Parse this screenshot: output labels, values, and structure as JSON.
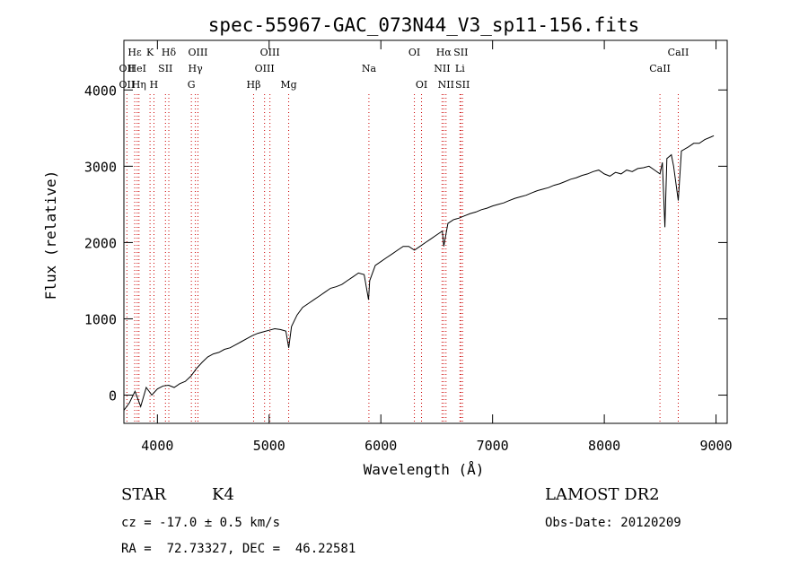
{
  "chart_data": {
    "type": "line",
    "title": "spec-55967-GAC_073N44_V3_sp11-156.fits",
    "xlabel": "Wavelength (Å)",
    "ylabel": "Flux (relative)",
    "xlim": [
      3700,
      9100
    ],
    "ylim": [
      -370,
      4650
    ],
    "xticks": [
      4000,
      5000,
      6000,
      7000,
      8000,
      9000
    ],
    "yticks": [
      0,
      1000,
      2000,
      3000,
      4000
    ],
    "grid": false,
    "series": [
      {
        "points": [
          [
            3700,
            -200
          ],
          [
            3750,
            -100
          ],
          [
            3800,
            50
          ],
          [
            3850,
            -150
          ],
          [
            3900,
            100
          ],
          [
            3950,
            0
          ],
          [
            4000,
            80
          ],
          [
            4050,
            120
          ],
          [
            4100,
            130
          ],
          [
            4150,
            100
          ],
          [
            4200,
            150
          ],
          [
            4250,
            180
          ],
          [
            4300,
            250
          ],
          [
            4350,
            350
          ],
          [
            4400,
            430
          ],
          [
            4450,
            500
          ],
          [
            4500,
            540
          ],
          [
            4550,
            560
          ],
          [
            4600,
            600
          ],
          [
            4650,
            620
          ],
          [
            4700,
            660
          ],
          [
            4750,
            700
          ],
          [
            4800,
            740
          ],
          [
            4850,
            780
          ],
          [
            4900,
            810
          ],
          [
            4950,
            830
          ],
          [
            5000,
            850
          ],
          [
            5050,
            870
          ],
          [
            5100,
            860
          ],
          [
            5150,
            840
          ],
          [
            5175,
            620
          ],
          [
            5200,
            900
          ],
          [
            5250,
            1050
          ],
          [
            5300,
            1150
          ],
          [
            5350,
            1200
          ],
          [
            5400,
            1250
          ],
          [
            5450,
            1300
          ],
          [
            5500,
            1350
          ],
          [
            5550,
            1400
          ],
          [
            5600,
            1420
          ],
          [
            5650,
            1450
          ],
          [
            5700,
            1500
          ],
          [
            5750,
            1550
          ],
          [
            5800,
            1600
          ],
          [
            5850,
            1580
          ],
          [
            5890,
            1250
          ],
          [
            5900,
            1500
          ],
          [
            5950,
            1700
          ],
          [
            6000,
            1750
          ],
          [
            6050,
            1800
          ],
          [
            6100,
            1850
          ],
          [
            6150,
            1900
          ],
          [
            6200,
            1950
          ],
          [
            6250,
            1950
          ],
          [
            6300,
            1900
          ],
          [
            6350,
            1950
          ],
          [
            6400,
            2000
          ],
          [
            6450,
            2050
          ],
          [
            6500,
            2100
          ],
          [
            6550,
            2150
          ],
          [
            6563,
            1950
          ],
          [
            6600,
            2250
          ],
          [
            6650,
            2300
          ],
          [
            6700,
            2320
          ],
          [
            6750,
            2350
          ],
          [
            6800,
            2380
          ],
          [
            6850,
            2400
          ],
          [
            6900,
            2430
          ],
          [
            6950,
            2450
          ],
          [
            7000,
            2480
          ],
          [
            7050,
            2500
          ],
          [
            7100,
            2520
          ],
          [
            7150,
            2550
          ],
          [
            7200,
            2580
          ],
          [
            7250,
            2600
          ],
          [
            7300,
            2620
          ],
          [
            7350,
            2650
          ],
          [
            7400,
            2680
          ],
          [
            7450,
            2700
          ],
          [
            7500,
            2720
          ],
          [
            7550,
            2750
          ],
          [
            7600,
            2770
          ],
          [
            7650,
            2800
          ],
          [
            7700,
            2830
          ],
          [
            7750,
            2850
          ],
          [
            7800,
            2880
          ],
          [
            7850,
            2900
          ],
          [
            7900,
            2930
          ],
          [
            7950,
            2950
          ],
          [
            8000,
            2900
          ],
          [
            8050,
            2870
          ],
          [
            8100,
            2920
          ],
          [
            8150,
            2900
          ],
          [
            8200,
            2950
          ],
          [
            8250,
            2930
          ],
          [
            8300,
            2970
          ],
          [
            8350,
            2980
          ],
          [
            8400,
            3000
          ],
          [
            8450,
            2950
          ],
          [
            8498,
            2900
          ],
          [
            8520,
            3050
          ],
          [
            8542,
            2200
          ],
          [
            8560,
            3100
          ],
          [
            8600,
            3150
          ],
          [
            8620,
            3000
          ],
          [
            8662,
            2550
          ],
          [
            8690,
            3200
          ],
          [
            8750,
            3250
          ],
          [
            8800,
            3300
          ],
          [
            8850,
            3300
          ],
          [
            8900,
            3350
          ],
          [
            8950,
            3380
          ],
          [
            8980,
            3400
          ]
        ]
      }
    ],
    "lines": [
      {
        "name": "Hε",
        "x": 3797,
        "row": 0
      },
      {
        "name": "OII",
        "x": 3727,
        "row": 1
      },
      {
        "name": "OII",
        "x": 3727,
        "row": 2
      },
      {
        "name": "HeI",
        "x": 3819,
        "row": 1
      },
      {
        "name": "Hη",
        "x": 3835,
        "row": 2
      },
      {
        "name": "K",
        "x": 3934,
        "row": 0
      },
      {
        "name": "SII",
        "x": 4072,
        "row": 1
      },
      {
        "name": "H",
        "x": 3969,
        "row": 2
      },
      {
        "name": "Hδ",
        "x": 4102,
        "row": 0
      },
      {
        "name": "OIII",
        "x": 4363,
        "row": 0
      },
      {
        "name": "Hγ",
        "x": 4340,
        "row": 1
      },
      {
        "name": "G",
        "x": 4304,
        "row": 2
      },
      {
        "name": "OIII",
        "x": 5007,
        "row": 0
      },
      {
        "name": "OIII",
        "x": 4959,
        "row": 1
      },
      {
        "name": "Hβ",
        "x": 4861,
        "row": 2
      },
      {
        "name": "Mg",
        "x": 5175,
        "row": 2
      },
      {
        "name": "Na",
        "x": 5893,
        "row": 1
      },
      {
        "name": "OI",
        "x": 6300,
        "row": 0
      },
      {
        "name": "OI",
        "x": 6364,
        "row": 2
      },
      {
        "name": "Hα",
        "x": 6563,
        "row": 0
      },
      {
        "name": "SII",
        "x": 6716,
        "row": 0
      },
      {
        "name": "NII",
        "x": 6548,
        "row": 1
      },
      {
        "name": "Li",
        "x": 6708,
        "row": 1
      },
      {
        "name": "NII",
        "x": 6583,
        "row": 2
      },
      {
        "name": "SII",
        "x": 6731,
        "row": 2
      },
      {
        "name": "CaII",
        "x": 8662,
        "row": 0
      },
      {
        "name": "CaII",
        "x": 8498,
        "row": 1
      }
    ]
  },
  "info": {
    "class": "STAR",
    "subclass": "K4",
    "survey": "LAMOST DR2",
    "cz": "cz = -17.0 ± 0.5 km/s",
    "obs_date": "Obs-Date: 20120209",
    "radec": "RA =  72.73327, DEC =  46.22581"
  }
}
